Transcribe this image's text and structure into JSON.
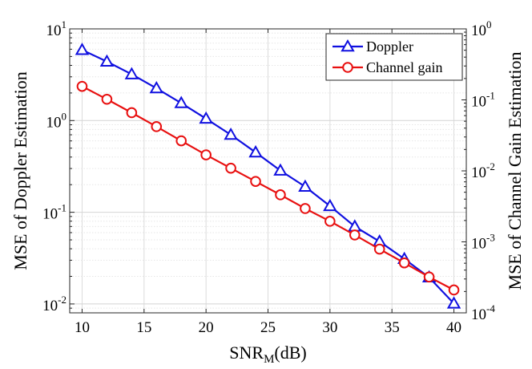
{
  "chart_data": {
    "type": "line",
    "x": [
      10,
      12,
      14,
      16,
      18,
      20,
      22,
      24,
      26,
      28,
      30,
      32,
      34,
      36,
      38,
      40
    ],
    "xlim": [
      9,
      41
    ],
    "xticks": [
      10,
      15,
      20,
      25,
      30,
      35,
      40
    ],
    "xtick_labels": [
      "10",
      "15",
      "20",
      "25",
      "30",
      "35",
      "40"
    ],
    "xlabel": {
      "main": "SNR",
      "sub": "M",
      "suffix": "(dB)"
    },
    "left_axis": {
      "label": "MSE of Doppler Estimation",
      "scale": "log",
      "ylim": [
        0.008,
        10
      ],
      "ticks": [
        {
          "value": 10,
          "base": "10",
          "exp": "1"
        },
        {
          "value": 1,
          "base": "10",
          "exp": "0"
        },
        {
          "value": 0.1,
          "base": "10",
          "exp": "-1"
        },
        {
          "value": 0.01,
          "base": "10",
          "exp": "-2"
        }
      ]
    },
    "right_axis": {
      "label": "MSE of Channel Gain Estimation",
      "scale": "log",
      "ylim": [
        0.0001,
        1
      ],
      "ticks": [
        {
          "value": 1,
          "base": "10",
          "exp": "0"
        },
        {
          "value": 0.1,
          "base": "10",
          "exp": "-1"
        },
        {
          "value": 0.01,
          "base": "10",
          "exp": "-2"
        },
        {
          "value": 0.001,
          "base": "10",
          "exp": "-3"
        },
        {
          "value": 0.0001,
          "base": "10",
          "exp": "-4"
        }
      ]
    },
    "grid": true,
    "legend_position": "top-right",
    "series": [
      {
        "name": "Doppler",
        "axis": "left",
        "color": "#1010e0",
        "marker": "triangle",
        "values": [
          5.9,
          4.4,
          3.2,
          2.25,
          1.55,
          1.05,
          0.7,
          0.45,
          0.285,
          0.19,
          0.117,
          0.07,
          0.048,
          0.031,
          0.0195,
          0.0101
        ]
      },
      {
        "name": "Channel gain",
        "axis": "right",
        "color": "#e81010",
        "marker": "circle",
        "values": [
          0.155,
          0.102,
          0.066,
          0.042,
          0.0265,
          0.0168,
          0.0109,
          0.0071,
          0.0046,
          0.00295,
          0.00195,
          0.00125,
          0.00079,
          0.000505,
          0.00032,
          0.00021
        ]
      }
    ]
  }
}
